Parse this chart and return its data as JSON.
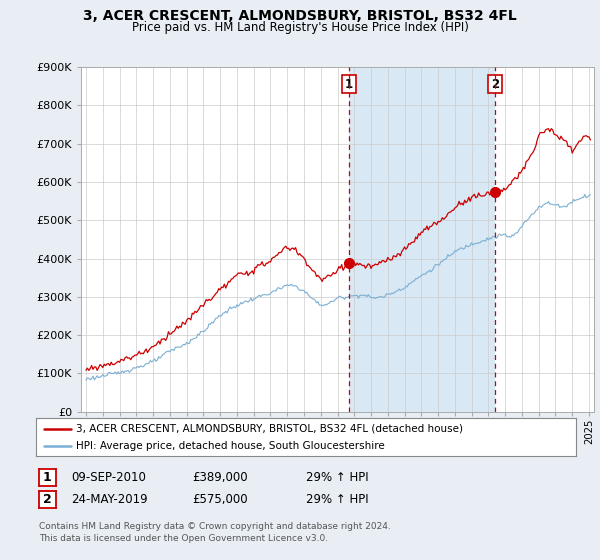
{
  "title": "3, ACER CRESCENT, ALMONDSBURY, BRISTOL, BS32 4FL",
  "subtitle": "Price paid vs. HM Land Registry's House Price Index (HPI)",
  "legend_line1": "3, ACER CRESCENT, ALMONDSBURY, BRISTOL, BS32 4FL (detached house)",
  "legend_line2": "HPI: Average price, detached house, South Gloucestershire",
  "footnote": "Contains HM Land Registry data © Crown copyright and database right 2024.\nThis data is licensed under the Open Government Licence v3.0.",
  "sale1_label": "1",
  "sale1_date": "09-SEP-2010",
  "sale1_price": "£389,000",
  "sale1_hpi": "29% ↑ HPI",
  "sale1_year": 2010.69,
  "sale1_value": 389000,
  "sale2_label": "2",
  "sale2_date": "24-MAY-2019",
  "sale2_price": "£575,000",
  "sale2_hpi": "29% ↑ HPI",
  "sale2_year": 2019.39,
  "sale2_value": 575000,
  "red_color": "#CC0000",
  "blue_color": "#7BAFD4",
  "shade_color": "#D8E8F4",
  "dashed_color": "#CC0000",
  "background_color": "#E8EEF4",
  "plot_bg": "#FFFFFF",
  "ylim": [
    0,
    900000
  ],
  "yticks": [
    0,
    100000,
    200000,
    300000,
    400000,
    500000,
    600000,
    700000,
    800000,
    900000
  ],
  "ytick_labels": [
    "£0",
    "£100K",
    "£200K",
    "£300K",
    "£400K",
    "£500K",
    "£600K",
    "£700K",
    "£800K",
    "£900K"
  ],
  "xlim_start": 1994.7,
  "xlim_end": 2025.3
}
